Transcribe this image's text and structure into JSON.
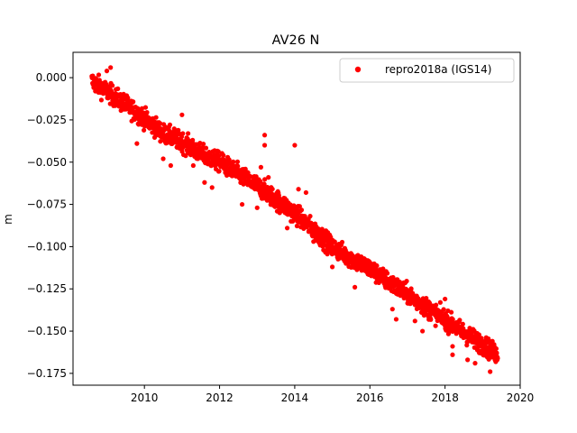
{
  "chart_data": {
    "type": "scatter",
    "title": "AV26 N",
    "xlabel": "",
    "ylabel": "m",
    "xlim": [
      2008.1,
      2020.0
    ],
    "ylim": [
      -0.182,
      0.015
    ],
    "x_ticks": [
      2010,
      2012,
      2014,
      2016,
      2018,
      2020
    ],
    "y_ticks": [
      0.0,
      -0.025,
      -0.05,
      -0.075,
      -0.1,
      -0.125,
      -0.15,
      -0.175
    ],
    "y_tick_labels": [
      "0.000",
      "−0.025",
      "−0.050",
      "−0.075",
      "−0.100",
      "−0.125",
      "−0.150",
      "−0.175"
    ],
    "x_tick_labels": [
      "2010",
      "2012",
      "2014",
      "2016",
      "2018",
      "2020"
    ],
    "legend_position": "top-right",
    "grid": false,
    "series": [
      {
        "name": "repro2018a (IGS14)",
        "color": "#ff0000",
        "marker": "circle",
        "trend_anchors": [
          {
            "x": 2008.6,
            "y": -0.002
          },
          {
            "x": 2009.0,
            "y": -0.008
          },
          {
            "x": 2009.5,
            "y": -0.016
          },
          {
            "x": 2010.0,
            "y": -0.024
          },
          {
            "x": 2010.5,
            "y": -0.033
          },
          {
            "x": 2011.0,
            "y": -0.038
          },
          {
            "x": 2011.5,
            "y": -0.045
          },
          {
            "x": 2012.0,
            "y": -0.05
          },
          {
            "x": 2012.5,
            "y": -0.057
          },
          {
            "x": 2013.0,
            "y": -0.064
          },
          {
            "x": 2013.5,
            "y": -0.072
          },
          {
            "x": 2014.0,
            "y": -0.08
          },
          {
            "x": 2014.5,
            "y": -0.09
          },
          {
            "x": 2015.0,
            "y": -0.1
          },
          {
            "x": 2015.5,
            "y": -0.107
          },
          {
            "x": 2016.0,
            "y": -0.113
          },
          {
            "x": 2016.5,
            "y": -0.121
          },
          {
            "x": 2017.0,
            "y": -0.128
          },
          {
            "x": 2017.5,
            "y": -0.136
          },
          {
            "x": 2018.0,
            "y": -0.143
          },
          {
            "x": 2018.5,
            "y": -0.151
          },
          {
            "x": 2019.0,
            "y": -0.158
          },
          {
            "x": 2019.4,
            "y": -0.164
          }
        ],
        "outliers": [
          {
            "x": 2009.1,
            "y": 0.006
          },
          {
            "x": 2009.0,
            "y": 0.004
          },
          {
            "x": 2009.8,
            "y": -0.039
          },
          {
            "x": 2010.5,
            "y": -0.048
          },
          {
            "x": 2010.7,
            "y": -0.052
          },
          {
            "x": 2011.0,
            "y": -0.022
          },
          {
            "x": 2011.3,
            "y": -0.052
          },
          {
            "x": 2011.6,
            "y": -0.062
          },
          {
            "x": 2011.8,
            "y": -0.065
          },
          {
            "x": 2012.1,
            "y": -0.046
          },
          {
            "x": 2012.6,
            "y": -0.075
          },
          {
            "x": 2013.0,
            "y": -0.077
          },
          {
            "x": 2013.1,
            "y": -0.053
          },
          {
            "x": 2013.2,
            "y": -0.04
          },
          {
            "x": 2013.2,
            "y": -0.034
          },
          {
            "x": 2013.3,
            "y": -0.059
          },
          {
            "x": 2013.4,
            "y": -0.074
          },
          {
            "x": 2013.6,
            "y": -0.08
          },
          {
            "x": 2013.8,
            "y": -0.089
          },
          {
            "x": 2013.9,
            "y": -0.085
          },
          {
            "x": 2014.0,
            "y": -0.04
          },
          {
            "x": 2014.1,
            "y": -0.066
          },
          {
            "x": 2014.3,
            "y": -0.068
          },
          {
            "x": 2014.5,
            "y": -0.097
          },
          {
            "x": 2014.9,
            "y": -0.103
          },
          {
            "x": 2015.0,
            "y": -0.112
          },
          {
            "x": 2015.6,
            "y": -0.124
          },
          {
            "x": 2016.6,
            "y": -0.137
          },
          {
            "x": 2016.7,
            "y": -0.143
          },
          {
            "x": 2017.2,
            "y": -0.144
          },
          {
            "x": 2017.4,
            "y": -0.15
          },
          {
            "x": 2018.0,
            "y": -0.131
          },
          {
            "x": 2018.2,
            "y": -0.159
          },
          {
            "x": 2018.2,
            "y": -0.164
          },
          {
            "x": 2018.6,
            "y": -0.167
          },
          {
            "x": 2018.8,
            "y": -0.169
          },
          {
            "x": 2019.2,
            "y": -0.174
          }
        ]
      }
    ]
  }
}
